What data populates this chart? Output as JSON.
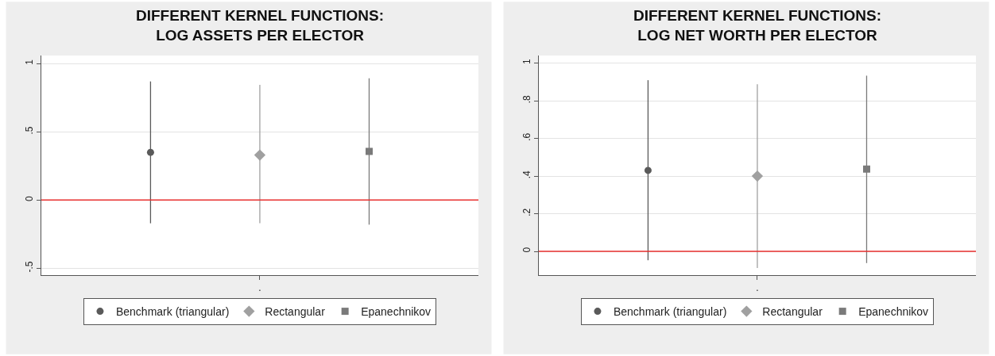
{
  "chart_data": [
    {
      "type": "scatter",
      "title": "DIFFERENT KERNEL FUNCTIONS:\nLOG ASSETS PER ELECTOR",
      "categories": [
        null,
        ".",
        null
      ],
      "ylim": [
        -0.55,
        1.06
      ],
      "yticks": [
        {
          "value": -0.5,
          "label": "-.5"
        },
        {
          "value": 0,
          "label": "0"
        },
        {
          "value": 0.5,
          "label": ".5"
        },
        {
          "value": 1,
          "label": "1"
        }
      ],
      "grid": "y",
      "legend": "bottom",
      "ref_lines": [
        {
          "axis": "y",
          "value": 0,
          "color": "#e8312f"
        }
      ],
      "series": [
        {
          "name": "Benchmark (triangular)",
          "color": "#5a5a5a",
          "marker": "circle",
          "values": [
            0.35,
            null,
            null
          ],
          "errors": [
            [
              -0.17,
              0.87
            ],
            null,
            null
          ]
        },
        {
          "name": "Rectangular",
          "color": "#a0a0a0",
          "marker": "diamond",
          "values": [
            null,
            0.33,
            null
          ],
          "errors": [
            null,
            [
              -0.17,
              0.845
            ],
            null
          ]
        },
        {
          "name": "Epanechnikov",
          "color": "#7a7a7a",
          "marker": "square",
          "values": [
            null,
            null,
            0.357
          ],
          "errors": [
            null,
            null,
            [
              -0.18,
              0.893
            ]
          ]
        }
      ]
    },
    {
      "type": "scatter",
      "title": "DIFFERENT KERNEL FUNCTIONS:\nLOG NET WORTH PER ELECTOR",
      "categories": [
        null,
        ".",
        null
      ],
      "ylim": [
        -0.126,
        1.04
      ],
      "yticks": [
        {
          "value": 0,
          "label": "0"
        },
        {
          "value": 0.2,
          "label": ".2"
        },
        {
          "value": 0.4,
          "label": ".4"
        },
        {
          "value": 0.6,
          "label": ".6"
        },
        {
          "value": 0.8,
          "label": ".8"
        },
        {
          "value": 1,
          "label": "1"
        }
      ],
      "grid": "y",
      "legend": "bottom",
      "ref_lines": [
        {
          "axis": "y",
          "value": 0,
          "color": "#e8312f"
        }
      ],
      "series": [
        {
          "name": "Benchmark (triangular)",
          "color": "#5a5a5a",
          "marker": "circle",
          "values": [
            0.43,
            null,
            null
          ],
          "errors": [
            [
              -0.047,
              0.909
            ],
            null,
            null
          ]
        },
        {
          "name": "Rectangular",
          "color": "#a0a0a0",
          "marker": "diamond",
          "values": [
            null,
            0.4,
            null
          ],
          "errors": [
            null,
            [
              -0.088,
              0.887
            ],
            null
          ]
        },
        {
          "name": "Epanechnikov",
          "color": "#7a7a7a",
          "marker": "square",
          "values": [
            null,
            null,
            0.437
          ],
          "errors": [
            null,
            null,
            [
              -0.062,
              0.933
            ]
          ]
        }
      ]
    }
  ]
}
